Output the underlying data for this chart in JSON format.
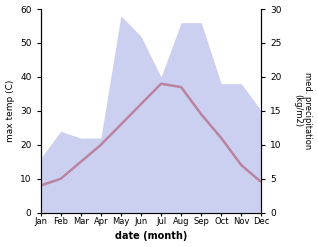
{
  "months": [
    "Jan",
    "Feb",
    "Mar",
    "Apr",
    "May",
    "Jun",
    "Jul",
    "Aug",
    "Sep",
    "Oct",
    "Nov",
    "Dec"
  ],
  "temp_max": [
    8,
    10,
    15,
    20,
    26,
    32,
    38,
    37,
    29,
    22,
    14,
    9
  ],
  "precip": [
    8,
    12,
    11,
    11,
    29,
    26,
    20,
    28,
    28,
    19,
    19,
    15
  ],
  "temp_ylim": [
    0,
    60
  ],
  "precip_ylim": [
    0,
    30
  ],
  "temp_yticks": [
    0,
    10,
    20,
    30,
    40,
    50,
    60
  ],
  "precip_yticks": [
    0,
    5,
    10,
    15,
    20,
    25,
    30
  ],
  "xlabel": "date (month)",
  "ylabel_left": "max temp (C)",
  "ylabel_right": "med. precipitation\n(kg/m2)",
  "fill_color": "#b0b8e8",
  "fill_alpha": 0.65,
  "line_color": "#cc2222",
  "line_width": 1.8,
  "bg_color": "#ffffff"
}
